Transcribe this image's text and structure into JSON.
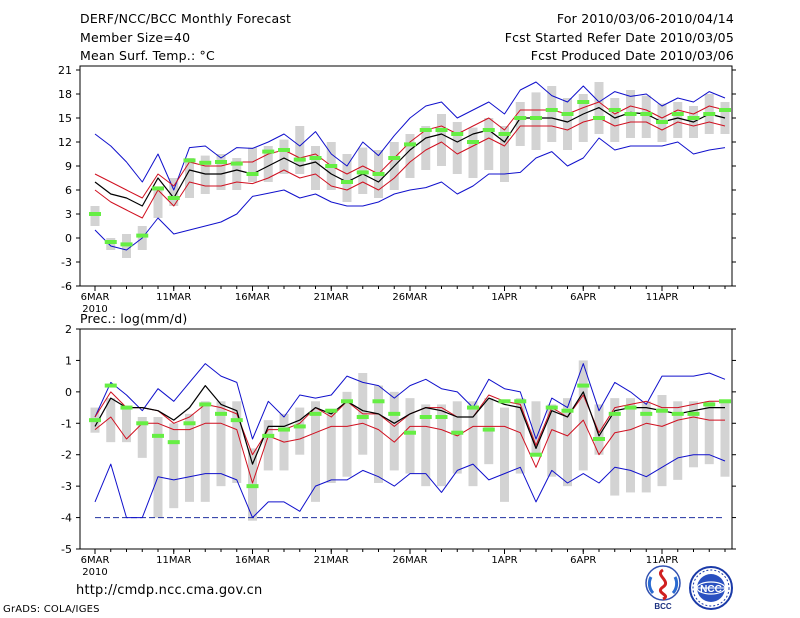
{
  "header": {
    "title": "DERF/NCC/BCC Monthly Forecast",
    "member_size": "Member Size=40",
    "panel1_variable": "Mean Surf. Temp.: °C",
    "period": "For 2010/03/06-2010/04/14",
    "started": "Fcst Started Refer Date 2010/03/05",
    "produced": "Fcst Produced Date 2010/03/06"
  },
  "panel2_variable": "Prec.: log(mm/d)",
  "footer": {
    "url": "http://cmdp.ncc.cma.gov.cn",
    "grads": "GrADS: COLA/IGES"
  },
  "logos": {
    "bcc": "BCC",
    "ncc": "NCC"
  },
  "colors": {
    "box": "#d3d3d3",
    "obs": "#66ee44",
    "mean": "#000000",
    "inner": "#d01020",
    "outer": "#1010cc"
  },
  "chart_data": [
    {
      "type": "box-plume",
      "title": "Mean Surf. Temp.: °C",
      "x_tick_labels": [
        "6MAR",
        "11MAR",
        "16MAR",
        "21MAR",
        "26MAR",
        "1APR",
        "6APR",
        "11APR"
      ],
      "x_tick_index": [
        0,
        5,
        10,
        15,
        20,
        26,
        31,
        36
      ],
      "year_label": "2010",
      "yticks": [
        -6,
        -3,
        0,
        3,
        6,
        9,
        12,
        15,
        18,
        21
      ],
      "ylim": [
        -6,
        21.5
      ],
      "series": [
        {
          "name": "box_high",
          "values": [
            4.0,
            0.0,
            0.5,
            1.5,
            6.0,
            7.5,
            10.0,
            10.3,
            10.5,
            10.0,
            11.3,
            11.5,
            12.3,
            14.0,
            11.5,
            12.0,
            10.5,
            11.3,
            11.0,
            12.0,
            13.0,
            14.0,
            15.5,
            14.5,
            13.8,
            15.0,
            14.0,
            17.0,
            18.2,
            19.0,
            17.5,
            18.0,
            19.5,
            17.5,
            18.5,
            17.8,
            16.8,
            17.0,
            16.5,
            18.0,
            17.0
          ]
        },
        {
          "name": "box_low",
          "values": [
            1.5,
            -1.5,
            -2.5,
            -1.5,
            2.5,
            4.0,
            5.0,
            5.5,
            6.0,
            6.0,
            7.0,
            7.0,
            8.0,
            8.0,
            6.0,
            6.0,
            4.5,
            5.5,
            5.0,
            6.0,
            7.5,
            8.5,
            9.0,
            8.0,
            7.5,
            8.5,
            7.0,
            11.5,
            11.0,
            12.0,
            11.0,
            12.0,
            13.0,
            12.0,
            12.5,
            12.5,
            12.0,
            12.5,
            12.5,
            13.0,
            13.0
          ]
        },
        {
          "name": "outer_high",
          "values": [
            13.0,
            11.5,
            9.5,
            7.0,
            10.5,
            6.0,
            11.3,
            11.5,
            10.0,
            11.3,
            11.2,
            12.0,
            13.0,
            11.5,
            13.3,
            10.5,
            9.0,
            12.0,
            10.3,
            12.8,
            15.0,
            16.5,
            17.0,
            15.0,
            16.0,
            17.0,
            15.5,
            18.5,
            19.5,
            17.8,
            17.0,
            19.0,
            17.0,
            18.3,
            17.7,
            18.0,
            16.5,
            17.5,
            17.0,
            18.3,
            17.5
          ]
        },
        {
          "name": "inner_high",
          "values": [
            8.0,
            7.0,
            6.0,
            5.0,
            8.0,
            6.5,
            9.5,
            9.0,
            9.0,
            9.5,
            9.5,
            10.5,
            11.0,
            10.0,
            10.5,
            9.0,
            8.0,
            9.0,
            8.0,
            10.0,
            12.0,
            13.5,
            14.0,
            13.0,
            14.0,
            15.0,
            13.5,
            16.0,
            16.0,
            16.0,
            15.5,
            16.3,
            17.0,
            15.5,
            16.5,
            16.0,
            15.0,
            16.0,
            15.5,
            16.5,
            16.0
          ]
        },
        {
          "name": "mean",
          "values": [
            7.0,
            5.5,
            5.0,
            4.0,
            7.5,
            5.0,
            8.5,
            8.0,
            8.0,
            8.5,
            8.0,
            9.0,
            10.0,
            9.0,
            9.5,
            8.0,
            7.0,
            8.0,
            7.0,
            9.0,
            11.0,
            12.5,
            13.0,
            12.0,
            13.0,
            13.5,
            12.0,
            15.0,
            15.0,
            15.0,
            14.5,
            15.5,
            16.3,
            15.0,
            15.7,
            15.5,
            14.5,
            15.0,
            14.5,
            15.5,
            15.0
          ]
        },
        {
          "name": "inner_low",
          "values": [
            6.0,
            4.5,
            3.5,
            2.5,
            6.0,
            4.0,
            7.0,
            6.5,
            6.5,
            7.0,
            6.8,
            7.5,
            8.5,
            7.5,
            8.0,
            6.5,
            6.0,
            7.0,
            6.0,
            7.5,
            9.5,
            11.0,
            12.0,
            10.5,
            11.5,
            12.5,
            11.5,
            14.0,
            14.0,
            14.0,
            13.5,
            14.5,
            15.0,
            14.0,
            14.5,
            14.5,
            13.5,
            14.5,
            14.0,
            14.5,
            14.0
          ]
        },
        {
          "name": "outer_low",
          "values": [
            1.0,
            -1.0,
            -1.5,
            0.0,
            2.5,
            0.5,
            1.0,
            1.5,
            2.0,
            3.0,
            5.2,
            5.6,
            6.0,
            5.0,
            5.5,
            4.5,
            4.0,
            4.0,
            4.5,
            5.5,
            6.0,
            6.3,
            7.0,
            5.5,
            6.5,
            8.0,
            8.0,
            8.2,
            10.0,
            10.8,
            9.0,
            10.0,
            12.5,
            11.0,
            11.5,
            11.5,
            11.5,
            12.0,
            10.5,
            11.0,
            11.3
          ]
        },
        {
          "name": "observed",
          "values": [
            3.0,
            -0.5,
            -0.8,
            0.3,
            6.2,
            5.0,
            9.7,
            9.4,
            9.5,
            9.3,
            8.0,
            10.8,
            11.0,
            9.8,
            10.0,
            9.0,
            7.0,
            8.2,
            8.0,
            10.0,
            11.7,
            13.5,
            13.5,
            13.0,
            12.0,
            13.5,
            13.0,
            15.0,
            15.0,
            16.0,
            15.5,
            17.0,
            15.0,
            16.0,
            15.5,
            15.5,
            14.5,
            15.5,
            15.0,
            15.5,
            16.0
          ]
        }
      ]
    },
    {
      "type": "box-plume",
      "title": "Prec.: log(mm/d)",
      "x_tick_labels": [
        "6MAR",
        "11MAR",
        "16MAR",
        "21MAR",
        "26MAR",
        "1APR",
        "6APR",
        "11APR"
      ],
      "x_tick_index": [
        0,
        5,
        10,
        15,
        20,
        26,
        31,
        36
      ],
      "year_label": "2010",
      "yticks": [
        -5,
        -4,
        -3,
        -2,
        -1,
        0,
        1,
        2
      ],
      "ylim": [
        -5,
        2
      ],
      "series": [
        {
          "name": "box_high",
          "values": [
            -0.5,
            -0.2,
            -0.5,
            -0.8,
            -0.8,
            -1.0,
            -0.7,
            -0.3,
            -0.3,
            -0.3,
            -1.8,
            -0.9,
            -0.7,
            -0.5,
            -0.3,
            -0.6,
            0.0,
            0.6,
            0.2,
            0.0,
            -0.2,
            -0.4,
            -0.4,
            -0.3,
            -0.3,
            -0.2,
            -0.5,
            -0.2,
            -0.3,
            -0.4,
            -0.2,
            1.0,
            -0.4,
            -0.2,
            -0.2,
            -0.3,
            -0.1,
            -0.3,
            -0.3,
            -0.3,
            -0.3
          ]
        },
        {
          "name": "box_low",
          "values": [
            -1.3,
            -1.6,
            -1.6,
            -2.1,
            -4.0,
            -3.7,
            -3.5,
            -3.5,
            -3.0,
            -2.9,
            -4.1,
            -2.5,
            -2.5,
            -2.0,
            -3.5,
            -2.9,
            -2.7,
            -2.0,
            -2.9,
            -2.5,
            -2.6,
            -3.0,
            -3.0,
            -2.6,
            -3.0,
            -2.3,
            -3.5,
            -2.6,
            -2.0,
            -2.7,
            -3.0,
            -2.5,
            -2.0,
            -3.3,
            -3.2,
            -3.2,
            -3.0,
            -2.8,
            -2.4,
            -2.3,
            -2.7
          ]
        },
        {
          "name": "outer_high",
          "values": [
            -0.8,
            0.3,
            -0.1,
            -0.6,
            0.1,
            -0.3,
            0.3,
            0.9,
            0.5,
            0.3,
            -1.5,
            -0.3,
            -0.8,
            -0.1,
            -0.2,
            -0.1,
            0.5,
            0.3,
            0.2,
            -0.2,
            0.2,
            0.4,
            0.1,
            0.0,
            -0.5,
            0.4,
            0.1,
            0.0,
            -1.5,
            -0.2,
            -0.5,
            0.9,
            -0.6,
            0.3,
            0.0,
            -0.4,
            0.5,
            0.5,
            0.5,
            0.6,
            0.4
          ]
        },
        {
          "name": "inner_high",
          "values": [
            -0.8,
            0.0,
            -0.5,
            -0.5,
            -0.6,
            -1.0,
            -0.8,
            -0.4,
            -0.5,
            -0.7,
            -2.0,
            -1.2,
            -1.2,
            -1.0,
            -0.5,
            -0.8,
            -0.3,
            -0.7,
            -0.7,
            -1.1,
            -0.7,
            -0.5,
            -0.5,
            -0.8,
            -0.8,
            -0.1,
            -0.3,
            -0.4,
            -1.7,
            -0.5,
            -0.8,
            -0.1,
            -1.3,
            -0.5,
            -0.4,
            -0.3,
            -0.5,
            -0.5,
            -0.4,
            -0.3,
            -0.3
          ]
        },
        {
          "name": "mean",
          "values": [
            -1.1,
            -0.2,
            -0.5,
            -0.5,
            -0.6,
            -0.9,
            -0.5,
            0.2,
            -0.4,
            -0.6,
            -2.3,
            -1.1,
            -1.1,
            -0.9,
            -0.5,
            -0.7,
            -0.3,
            -0.6,
            -0.7,
            -1.0,
            -0.7,
            -0.5,
            -0.6,
            -0.8,
            -0.8,
            -0.2,
            -0.4,
            -0.5,
            -1.8,
            -0.6,
            -0.8,
            0.0,
            -1.4,
            -0.6,
            -0.5,
            -0.5,
            -0.6,
            -0.7,
            -0.6,
            -0.5,
            -0.5
          ]
        },
        {
          "name": "inner_low",
          "values": [
            -1.2,
            -0.8,
            -1.5,
            -1.0,
            -1.0,
            -1.2,
            -1.2,
            -1.0,
            -1.0,
            -1.2,
            -2.9,
            -1.4,
            -1.6,
            -1.5,
            -1.3,
            -1.1,
            -1.1,
            -1.0,
            -1.2,
            -1.6,
            -1.1,
            -1.1,
            -1.2,
            -1.4,
            -1.1,
            -1.1,
            -1.1,
            -1.3,
            -2.4,
            -1.2,
            -1.4,
            -0.9,
            -2.0,
            -1.3,
            -1.2,
            -1.0,
            -1.1,
            -0.9,
            -0.8,
            -0.9,
            -0.9
          ]
        },
        {
          "name": "outer_low",
          "values": [
            -3.5,
            -2.3,
            -4.0,
            -4.0,
            -2.7,
            -2.8,
            -2.7,
            -2.6,
            -2.6,
            -2.8,
            -4.0,
            -3.5,
            -3.5,
            -3.8,
            -3.0,
            -2.8,
            -2.8,
            -2.5,
            -2.7,
            -3.0,
            -2.6,
            -2.6,
            -3.2,
            -2.5,
            -2.3,
            -2.8,
            -2.6,
            -2.4,
            -3.5,
            -2.5,
            -2.9,
            -2.6,
            -2.9,
            -2.4,
            -2.5,
            -2.7,
            -2.4,
            -2.1,
            -2.0,
            -2.0,
            -2.2
          ]
        },
        {
          "name": "floor",
          "values": [
            -4.0,
            -4.0,
            -4.0,
            -4.0,
            -4.0,
            -4.0,
            -4.0,
            -4.0,
            -4.0,
            -4.0,
            -4.0,
            -4.0,
            -4.0,
            -4.0,
            -4.0,
            -4.0,
            -4.0,
            -4.0,
            -4.0,
            -4.0,
            -4.0,
            -4.0,
            -4.0,
            -4.0,
            -4.0,
            -4.0,
            -4.0,
            -4.0,
            -4.0,
            -4.0,
            -4.0,
            -4.0,
            -4.0,
            -4.0,
            -4.0,
            -4.0,
            -4.0,
            -4.0,
            -4.0,
            -4.0,
            -4.0
          ]
        },
        {
          "name": "observed",
          "values": [
            -0.9,
            0.2,
            -0.5,
            -1.0,
            -1.4,
            -1.6,
            -1.0,
            -0.4,
            -0.7,
            -0.9,
            -3.0,
            -1.4,
            -1.2,
            -1.1,
            -0.7,
            -0.6,
            -0.3,
            -0.8,
            -0.3,
            -0.7,
            -1.3,
            -0.8,
            -0.8,
            -1.3,
            -0.5,
            -1.2,
            -0.3,
            -0.3,
            -2.0,
            -0.5,
            -0.6,
            0.2,
            -1.5,
            -0.7,
            -0.5,
            -0.7,
            -0.6,
            -0.7,
            -0.7,
            -0.4,
            -0.3
          ]
        }
      ]
    }
  ]
}
